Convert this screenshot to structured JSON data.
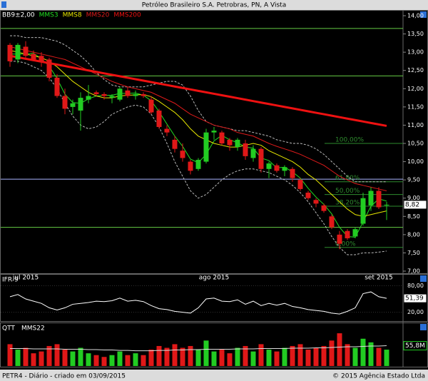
{
  "chart_data": {
    "type": "candlestick",
    "title": "Petróleo Brasileiro S.A. Petrobras, PN, A Vista",
    "footer_left": "PETR4 - Diário - criado em 03/09/2015",
    "footer_right": "© 2015 Agência Estado Ltda",
    "categories": [
      null,
      null,
      "jul 2015",
      null,
      null,
      null,
      null,
      null,
      null,
      null,
      null,
      null,
      null,
      null,
      null,
      null,
      null,
      null,
      null,
      null,
      null,
      null,
      null,
      null,
      null,
      null,
      "ago 2015",
      null,
      null,
      null,
      null,
      null,
      null,
      null,
      null,
      null,
      null,
      null,
      null,
      null,
      null,
      null,
      null,
      null,
      null,
      null,
      null,
      "set 2015",
      null
    ],
    "ohlc": {
      "open": [
        13.2,
        12.8,
        13.15,
        12.95,
        12.9,
        12.8,
        12.3,
        11.8,
        11.5,
        11.4,
        11.7,
        11.9,
        11.85,
        11.75,
        11.7,
        11.95,
        11.8,
        11.85,
        11.7,
        11.4,
        10.9,
        10.6,
        10.3,
        10.0,
        9.8,
        10.0,
        10.8,
        10.8,
        10.6,
        10.4,
        10.5,
        10.1,
        10.35,
        9.8,
        9.9,
        9.75,
        9.8,
        9.5,
        9.15,
        8.95,
        8.8,
        8.5,
        8.0,
        8.1,
        7.95,
        8.3,
        8.8,
        9.2,
        8.8
      ],
      "high": [
        13.25,
        13.25,
        13.3,
        13.05,
        13.0,
        12.85,
        12.4,
        12.0,
        11.7,
        11.9,
        12.1,
        11.95,
        11.9,
        11.85,
        12.05,
        12.05,
        11.95,
        11.9,
        11.8,
        11.45,
        11.0,
        10.7,
        10.5,
        10.05,
        10.1,
        10.9,
        10.95,
        10.85,
        10.65,
        10.65,
        10.6,
        10.45,
        10.4,
        10.0,
        9.95,
        9.9,
        9.85,
        9.55,
        9.2,
        9.0,
        8.85,
        8.55,
        8.1,
        8.15,
        8.2,
        9.15,
        9.3,
        9.3,
        8.9
      ],
      "low": [
        12.6,
        12.7,
        12.85,
        12.75,
        12.6,
        12.2,
        11.75,
        11.3,
        11.3,
        10.85,
        11.6,
        11.8,
        11.7,
        11.6,
        11.65,
        11.75,
        11.7,
        11.75,
        11.3,
        10.9,
        10.7,
        10.25,
        10.0,
        9.65,
        9.75,
        9.95,
        10.6,
        10.45,
        10.3,
        10.3,
        10.05,
        10.0,
        9.7,
        9.55,
        9.7,
        9.6,
        9.45,
        9.2,
        8.95,
        8.75,
        8.6,
        8.15,
        7.6,
        7.85,
        7.9,
        8.25,
        8.65,
        8.7,
        8.4
      ],
      "close": [
        12.75,
        13.2,
        12.9,
        12.8,
        12.75,
        12.3,
        11.8,
        11.45,
        11.6,
        11.75,
        11.8,
        11.85,
        11.8,
        11.8,
        12.0,
        11.8,
        11.85,
        11.8,
        11.35,
        10.95,
        10.8,
        10.35,
        10.1,
        9.75,
        10.05,
        10.8,
        10.85,
        10.5,
        10.45,
        10.6,
        10.15,
        10.35,
        9.8,
        9.95,
        9.75,
        9.85,
        9.55,
        9.25,
        9.0,
        8.85,
        8.65,
        8.2,
        7.75,
        7.9,
        8.15,
        9.0,
        9.2,
        8.75,
        8.82
      ]
    },
    "up_color": "#22cc22",
    "down_color": "#e01818",
    "bands": {
      "name": "BB9±2,00",
      "color": "#bbbbbb",
      "upper": [
        13.45,
        13.45,
        13.4,
        13.4,
        13.4,
        13.35,
        13.3,
        13.2,
        13.05,
        12.9,
        12.7,
        12.45,
        12.25,
        12.1,
        12.05,
        12.05,
        12.05,
        12.05,
        12.1,
        12.15,
        12.2,
        12.2,
        12.1,
        11.8,
        11.4,
        11.1,
        11.0,
        10.95,
        10.9,
        10.85,
        10.85,
        10.8,
        10.75,
        10.7,
        10.6,
        10.55,
        10.5,
        10.5,
        10.45,
        10.35,
        10.2,
        10.0,
        9.8,
        9.6,
        9.45,
        9.45,
        9.45,
        9.45,
        9.45
      ],
      "lower": [
        12.75,
        12.75,
        12.7,
        12.6,
        12.5,
        12.3,
        12.0,
        11.6,
        11.25,
        11.0,
        10.9,
        10.95,
        11.1,
        11.3,
        11.4,
        11.5,
        11.55,
        11.5,
        11.3,
        10.95,
        10.5,
        10.0,
        9.6,
        9.2,
        9.0,
        9.1,
        9.3,
        9.5,
        9.65,
        9.75,
        9.8,
        9.8,
        9.75,
        9.7,
        9.6,
        9.5,
        9.35,
        9.15,
        8.9,
        8.6,
        8.3,
        7.95,
        7.65,
        7.45,
        7.45,
        7.5,
        7.5,
        7.52,
        7.55
      ]
    },
    "series": [
      {
        "name": "MMS3",
        "color": "#22dd22",
        "width": 1,
        "values": [
          12.95,
          12.95,
          12.95,
          12.97,
          12.82,
          12.62,
          12.28,
          11.85,
          11.62,
          11.6,
          11.72,
          11.8,
          11.82,
          11.82,
          11.87,
          11.87,
          11.88,
          11.82,
          11.67,
          11.37,
          11.03,
          10.7,
          10.42,
          10.07,
          9.97,
          10.2,
          10.57,
          10.72,
          10.6,
          10.52,
          10.4,
          10.37,
          10.1,
          10.03,
          9.83,
          9.85,
          9.72,
          9.55,
          9.27,
          9.03,
          8.83,
          8.57,
          8.2,
          7.95,
          7.93,
          8.35,
          8.78,
          8.98,
          8.92
        ]
      },
      {
        "name": "MMS8",
        "color": "#e8e800",
        "width": 1,
        "values": [
          13.05,
          13.0,
          12.95,
          12.9,
          12.85,
          12.75,
          12.6,
          12.4,
          12.2,
          12.05,
          11.9,
          11.8,
          11.75,
          11.75,
          11.8,
          11.82,
          11.83,
          11.84,
          11.78,
          11.65,
          11.5,
          11.35,
          11.15,
          10.9,
          10.7,
          10.6,
          10.5,
          10.45,
          10.4,
          10.4,
          10.45,
          10.5,
          10.45,
          10.3,
          10.2,
          10.1,
          10.0,
          9.85,
          9.65,
          9.5,
          9.3,
          9.1,
          8.9,
          8.7,
          8.55,
          8.5,
          8.55,
          8.6,
          8.65
        ]
      },
      {
        "name": "MMS20",
        "color": "#dd1a1a",
        "width": 1,
        "values": [
          13.15,
          13.1,
          13.05,
          13.0,
          12.95,
          12.9,
          12.85,
          12.8,
          12.7,
          12.6,
          12.5,
          12.4,
          12.3,
          12.2,
          12.12,
          12.05,
          12.0,
          11.95,
          11.9,
          11.8,
          11.7,
          11.6,
          11.45,
          11.3,
          11.2,
          11.1,
          11.0,
          10.95,
          10.9,
          10.8,
          10.75,
          10.7,
          10.6,
          10.5,
          10.42,
          10.35,
          10.28,
          10.2,
          10.1,
          10.0,
          9.9,
          9.75,
          9.6,
          9.5,
          9.4,
          9.35,
          9.3,
          9.25,
          9.2
        ]
      },
      {
        "name": "MMS200",
        "color": "#ee1111",
        "width": 3,
        "values": [
          12.9,
          12.86,
          12.82,
          12.78,
          12.74,
          12.7,
          12.66,
          12.62,
          12.58,
          12.54,
          12.5,
          12.46,
          12.42,
          12.38,
          12.34,
          12.3,
          12.26,
          12.22,
          12.18,
          12.14,
          12.1,
          12.06,
          12.02,
          11.98,
          11.94,
          11.9,
          11.86,
          11.82,
          11.78,
          11.74,
          11.7,
          11.66,
          11.62,
          11.58,
          11.54,
          11.5,
          11.46,
          11.42,
          11.38,
          11.34,
          11.3,
          11.26,
          11.22,
          11.18,
          11.14,
          11.1,
          11.06,
          11.02,
          10.98
        ]
      }
    ],
    "ylim": [
      7,
      14
    ],
    "yticks": [
      {
        "value": 7,
        "label": "7,00"
      },
      {
        "value": 7.5,
        "label": "7,50"
      },
      {
        "value": 8,
        "label": "8,00"
      },
      {
        "value": 8.5,
        "label": "8,50"
      },
      {
        "value": 9,
        "label": "9,00"
      },
      {
        "value": 9.5,
        "label": "9,50"
      },
      {
        "value": 10,
        "label": "10,00"
      },
      {
        "value": 10.5,
        "label": "10,50"
      },
      {
        "value": 11,
        "label": "11,00"
      },
      {
        "value": 11.5,
        "label": "11,50"
      },
      {
        "value": 12,
        "label": "12,00"
      },
      {
        "value": 12.5,
        "label": "12,50"
      },
      {
        "value": 13,
        "label": "13,00"
      },
      {
        "value": 13.5,
        "label": "13,50"
      },
      {
        "value": 14,
        "label": "14,00"
      }
    ],
    "hlines": [
      {
        "value": 13.65,
        "color": "#66cc44"
      },
      {
        "value": 12.35,
        "color": "#66cc44"
      },
      {
        "value": 9.52,
        "color": "#aab4ff"
      },
      {
        "value": 8.2,
        "color": "#66cc44"
      }
    ],
    "fib_levels": [
      {
        "value": 10.5,
        "label": "100,00%"
      },
      {
        "value": 9.45,
        "label": "61,80%"
      },
      {
        "value": 9.1,
        "label": "50,00%"
      },
      {
        "value": 8.78,
        "label": "38,20%"
      },
      {
        "value": 7.65,
        "label": "0,00%"
      }
    ],
    "fib_color": "#2e8b2e",
    "last_price": {
      "value": 8.82,
      "label": "8,82"
    },
    "rsi": {
      "title": "IFR 9",
      "color": "#ffffff",
      "ylim": [
        0,
        100
      ],
      "yticks": [
        {
          "value": 80,
          "label": "80,00"
        },
        {
          "value": 20,
          "label": "20,00"
        }
      ],
      "values": [
        55,
        60,
        50,
        45,
        40,
        30,
        25,
        30,
        38,
        40,
        42,
        45,
        44,
        46,
        52,
        45,
        47,
        44,
        35,
        28,
        26,
        22,
        20,
        18,
        30,
        50,
        52,
        45,
        44,
        48,
        38,
        45,
        35,
        40,
        36,
        40,
        33,
        30,
        26,
        24,
        22,
        18,
        16,
        22,
        30,
        62,
        66,
        55,
        51.39
      ],
      "last": {
        "value": 51.39,
        "label": "51,39"
      }
    },
    "volume": {
      "title": "QTT",
      "ylim": [
        0,
        100
      ],
      "values": [
        60,
        45,
        50,
        35,
        40,
        55,
        60,
        45,
        40,
        50,
        35,
        30,
        25,
        30,
        40,
        30,
        35,
        30,
        45,
        55,
        50,
        60,
        50,
        55,
        45,
        70,
        40,
        45,
        35,
        50,
        55,
        40,
        60,
        45,
        40,
        50,
        55,
        60,
        45,
        50,
        55,
        70,
        90,
        60,
        50,
        75,
        65,
        50,
        45
      ],
      "ma": {
        "name": "MMS22",
        "color": "#dddddd",
        "values": [
          48,
          48,
          48,
          47,
          47,
          47,
          47,
          46,
          46,
          46,
          45,
          45,
          44,
          44,
          43,
          43,
          42,
          42,
          42,
          43,
          43,
          44,
          44,
          45,
          45,
          46,
          46,
          46,
          46,
          47,
          47,
          47,
          48,
          48,
          48,
          48,
          49,
          49,
          49,
          50,
          50,
          51,
          52,
          53,
          53,
          54,
          55,
          55,
          55.8
        ]
      },
      "last": {
        "value": 55.8,
        "label": "55,8M"
      }
    }
  }
}
